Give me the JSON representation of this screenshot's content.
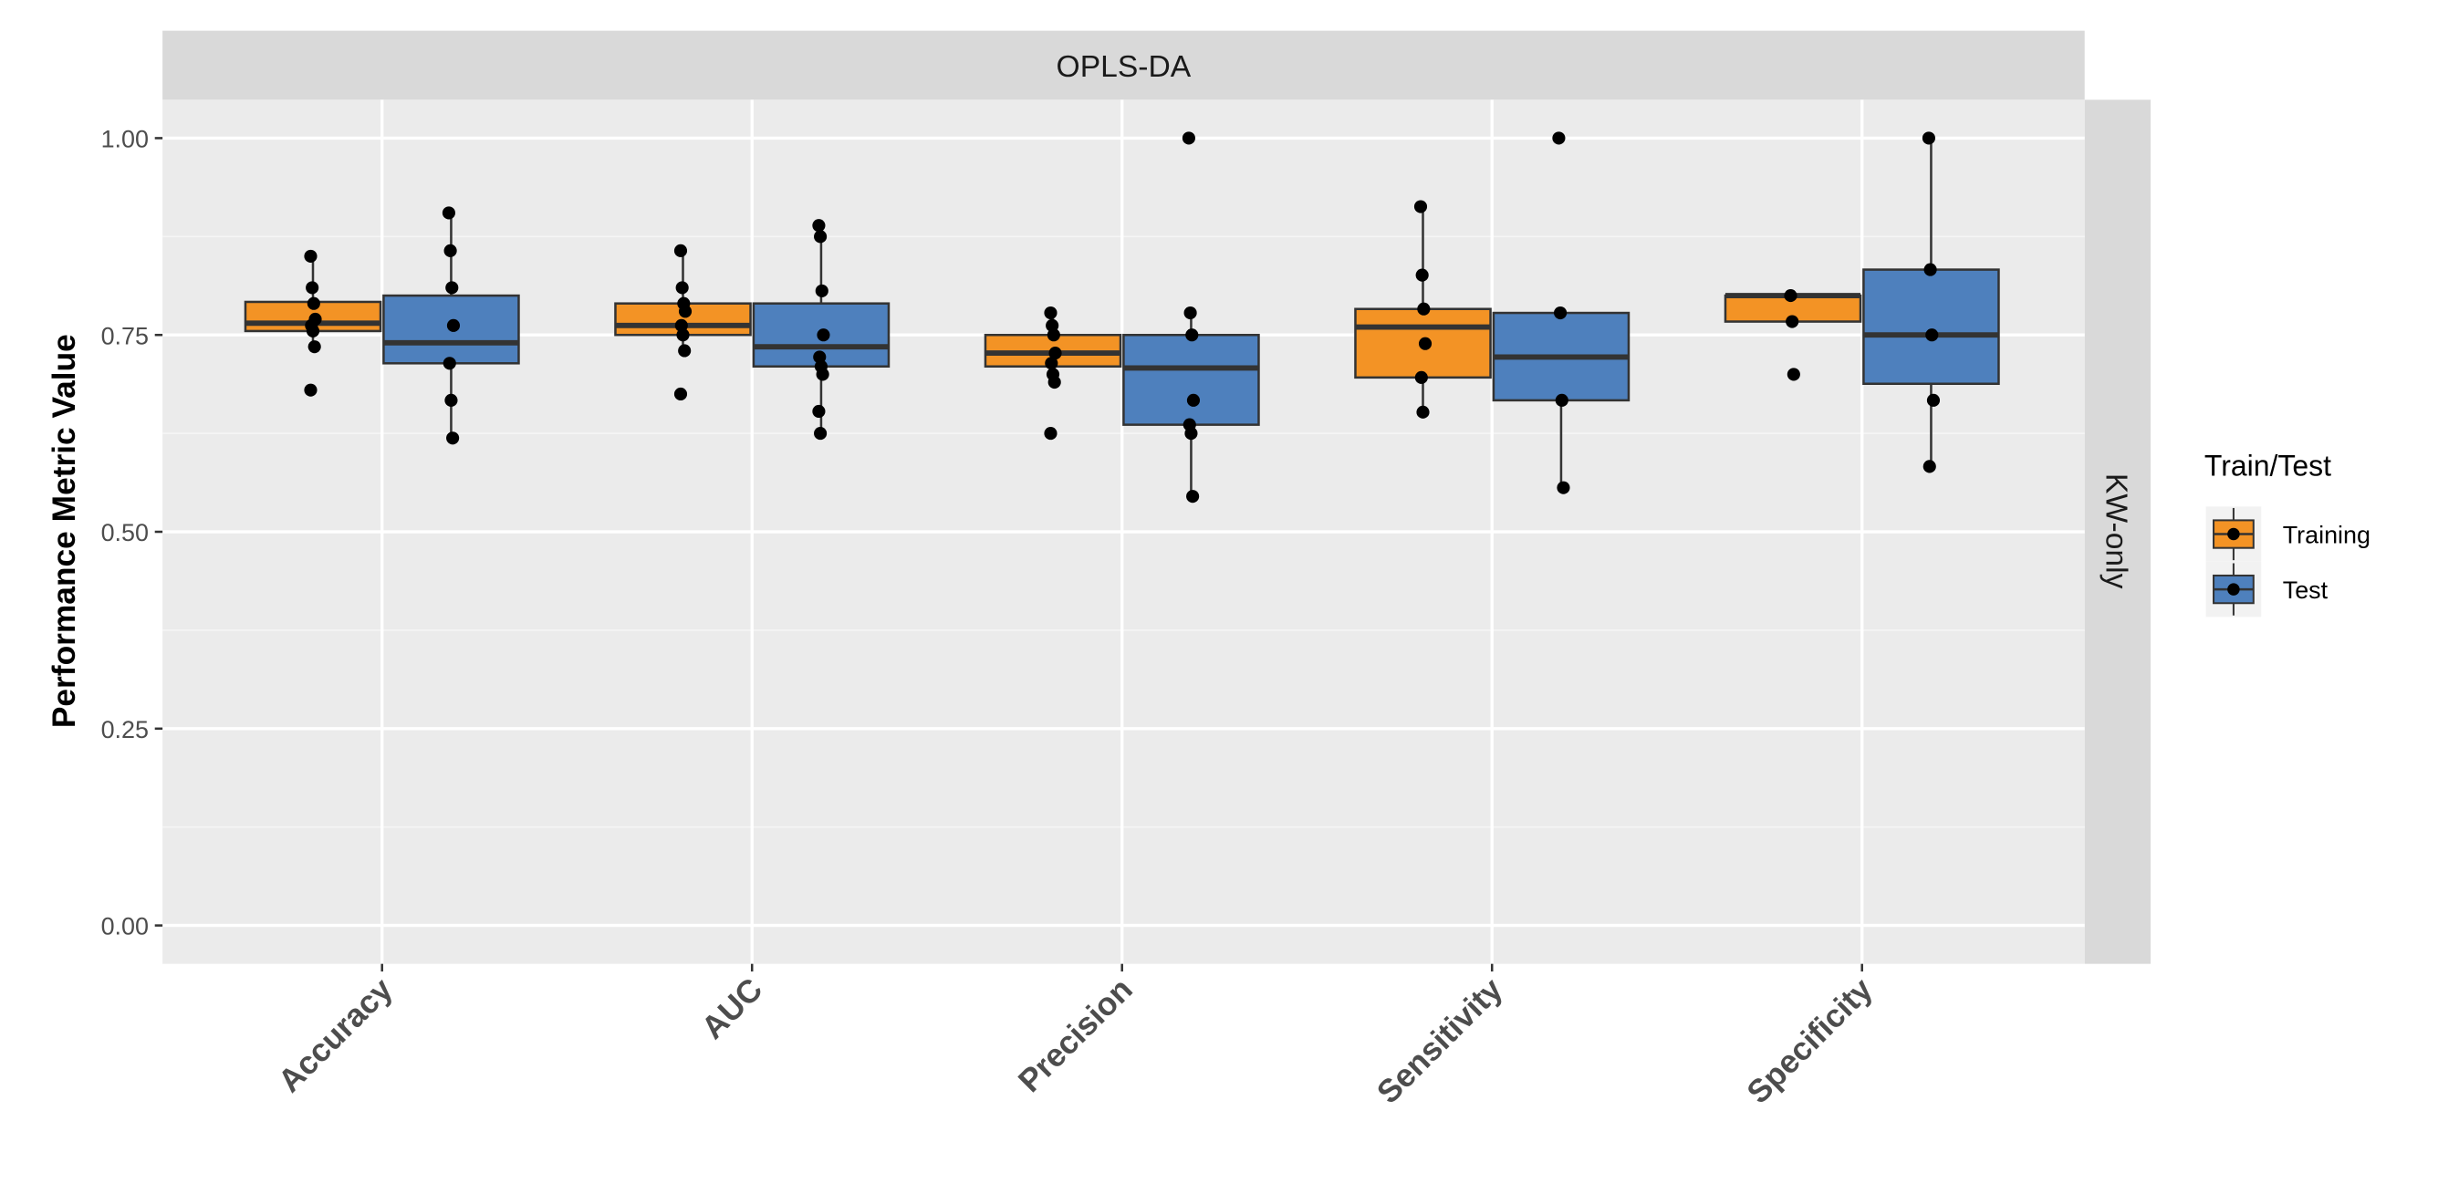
{
  "chart_data": {
    "type": "box",
    "facet_top": "OPLS-DA",
    "facet_right": "KW-only",
    "ylabel": "Performance Metric Value",
    "xlabel": "",
    "ylim": [
      -0.04,
      1.05
    ],
    "yticks": [
      0,
      0.25,
      0.5,
      0.75,
      1.0
    ],
    "ytick_labels": [
      "0.00",
      "0.25",
      "0.50",
      "0.75",
      "1.00"
    ],
    "grid": true,
    "categories": [
      "Accuracy",
      "AUC",
      "Precision",
      "Sensitivity",
      "Specificity"
    ],
    "legend": {
      "title": "Train/Test",
      "placement": "right",
      "entries": [
        "Training",
        "Test"
      ]
    },
    "colors": {
      "Training": "#F39325",
      "Test": "#4E80BD"
    },
    "series": [
      {
        "name": "Training",
        "boxes": [
          {
            "q1": 0.755,
            "median": 0.765,
            "q3": 0.792,
            "whisker_low": 0.735,
            "whisker_high": 0.85,
            "points": [
              0.85,
              0.81,
              0.79,
              0.77,
              0.762,
              0.755,
              0.735,
              0.68
            ]
          },
          {
            "q1": 0.75,
            "median": 0.762,
            "q3": 0.79,
            "whisker_low": 0.73,
            "whisker_high": 0.857,
            "points": [
              0.857,
              0.81,
              0.79,
              0.78,
              0.762,
              0.75,
              0.73,
              0.675
            ]
          },
          {
            "q1": 0.71,
            "median": 0.727,
            "q3": 0.75,
            "whisker_low": 0.69,
            "whisker_high": 0.778,
            "points": [
              0.778,
              0.762,
              0.75,
              0.727,
              0.714,
              0.7,
              0.69,
              0.625
            ]
          },
          {
            "q1": 0.696,
            "median": 0.76,
            "q3": 0.783,
            "whisker_low": 0.652,
            "whisker_high": 0.913,
            "points": [
              0.913,
              0.826,
              0.783,
              0.739,
              0.696,
              0.652
            ]
          },
          {
            "q1": 0.767,
            "median": 0.8,
            "q3": 0.8,
            "whisker_low": 0.767,
            "whisker_high": 0.8,
            "points": [
              0.8,
              0.767,
              0.7
            ]
          }
        ]
      },
      {
        "name": "Test",
        "boxes": [
          {
            "q1": 0.714,
            "median": 0.74,
            "q3": 0.8,
            "whisker_low": 0.619,
            "whisker_high": 0.905,
            "points": [
              0.905,
              0.857,
              0.81,
              0.762,
              0.714,
              0.667,
              0.619
            ]
          },
          {
            "q1": 0.71,
            "median": 0.735,
            "q3": 0.79,
            "whisker_low": 0.625,
            "whisker_high": 0.889,
            "points": [
              0.889,
              0.875,
              0.806,
              0.75,
              0.722,
              0.71,
              0.7,
              0.653,
              0.625
            ]
          },
          {
            "q1": 0.636,
            "median": 0.708,
            "q3": 0.75,
            "whisker_low": 0.545,
            "whisker_high": 0.778,
            "points": [
              1.0,
              0.778,
              0.75,
              0.667,
              0.636,
              0.625,
              0.545
            ]
          },
          {
            "q1": 0.667,
            "median": 0.722,
            "q3": 0.778,
            "whisker_low": 0.556,
            "whisker_high": 0.778,
            "points": [
              1.0,
              0.778,
              0.667,
              0.556
            ]
          },
          {
            "q1": 0.688,
            "median": 0.75,
            "q3": 0.833,
            "whisker_low": 0.583,
            "whisker_high": 1.0,
            "points": [
              1.0,
              0.833,
              0.75,
              0.667,
              0.583
            ]
          }
        ]
      }
    ]
  }
}
